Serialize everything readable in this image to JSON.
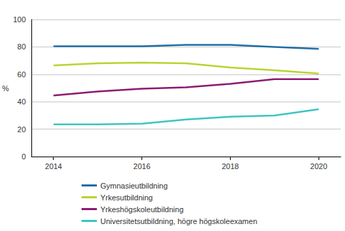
{
  "chart_data": {
    "type": "line",
    "ylabel": "%",
    "x": [
      2014,
      2015,
      2016,
      2017,
      2018,
      2019,
      2020
    ],
    "series": [
      {
        "name": "Gymnasieutbildning",
        "color": "#1f6fa5",
        "values": [
          80.5,
          80.5,
          80.5,
          81.5,
          81.5,
          80,
          78.5
        ]
      },
      {
        "name": "Yrkesutbildning",
        "color": "#b8d432",
        "values": [
          66.5,
          68,
          68.5,
          68,
          65,
          63,
          60.5
        ]
      },
      {
        "name": "Yrkeshögskoleutbildning",
        "color": "#8c1a70",
        "values": [
          44.5,
          47.5,
          49.5,
          50.5,
          53,
          56.5,
          56.5
        ]
      },
      {
        "name": "Universitetsutbildning, högre högskoleexamen",
        "color": "#3ec4c4",
        "values": [
          23.5,
          23.5,
          24,
          27,
          29,
          30,
          34.5
        ]
      }
    ],
    "xlim": [
      2013.5,
      2020.5
    ],
    "xticks": [
      2014,
      2016,
      2018,
      2020
    ],
    "ylim": [
      0,
      100
    ],
    "yticks": [
      0,
      20,
      40,
      60,
      80,
      100
    ],
    "grid": true,
    "legend": "bottom"
  }
}
